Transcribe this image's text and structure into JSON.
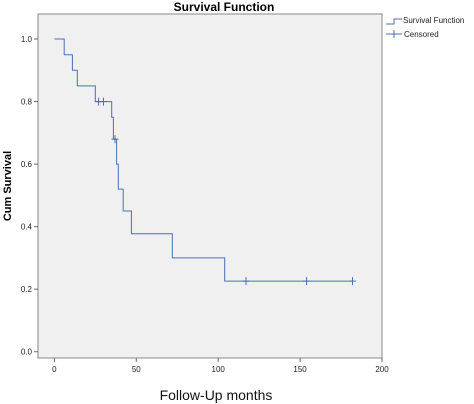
{
  "chart_data": {
    "type": "line",
    "title": "Survival Function",
    "xlabel": "Follow-Up months",
    "ylabel": "Cum Survival",
    "xlim": [
      -10,
      200
    ],
    "ylim": [
      -0.02,
      1.08
    ],
    "x_ticks": [
      0,
      50,
      100,
      150,
      200
    ],
    "y_ticks": [
      0.0,
      0.2,
      0.4,
      0.6,
      0.8,
      1.0
    ],
    "x_tick_labels": [
      "0",
      "50",
      "100",
      "150",
      "200"
    ],
    "y_tick_labels": [
      "0.0",
      "0.2",
      "0.4",
      "0.6",
      "0.8",
      "1.0"
    ],
    "grid": false,
    "legend_position": "top-right-outside",
    "series": [
      {
        "name": "Survival Function",
        "color": "#4a6fb5",
        "step_points": [
          [
            0,
            1.0
          ],
          [
            6,
            1.0
          ],
          [
            6,
            0.95
          ],
          [
            11,
            0.95
          ],
          [
            11,
            0.9
          ],
          [
            14,
            0.9
          ],
          [
            14,
            0.85
          ],
          [
            25,
            0.85
          ],
          [
            25,
            0.8
          ],
          [
            35,
            0.8
          ],
          [
            35,
            0.75
          ],
          [
            36,
            0.75
          ],
          [
            36,
            0.68
          ],
          [
            38,
            0.68
          ],
          [
            38,
            0.6
          ],
          [
            39,
            0.6
          ],
          [
            39,
            0.52
          ],
          [
            42,
            0.52
          ],
          [
            42,
            0.45
          ],
          [
            47,
            0.45
          ],
          [
            47,
            0.377
          ],
          [
            72,
            0.377
          ],
          [
            72,
            0.3
          ],
          [
            104,
            0.3
          ],
          [
            104,
            0.226
          ],
          [
            182,
            0.226
          ]
        ]
      },
      {
        "name": "Censored",
        "color": "#4a6fb5",
        "points": [
          [
            27,
            0.8
          ],
          [
            30,
            0.8
          ],
          [
            37,
            0.68
          ],
          [
            117,
            0.226
          ],
          [
            154,
            0.226
          ],
          [
            182,
            0.226
          ]
        ]
      }
    ]
  }
}
